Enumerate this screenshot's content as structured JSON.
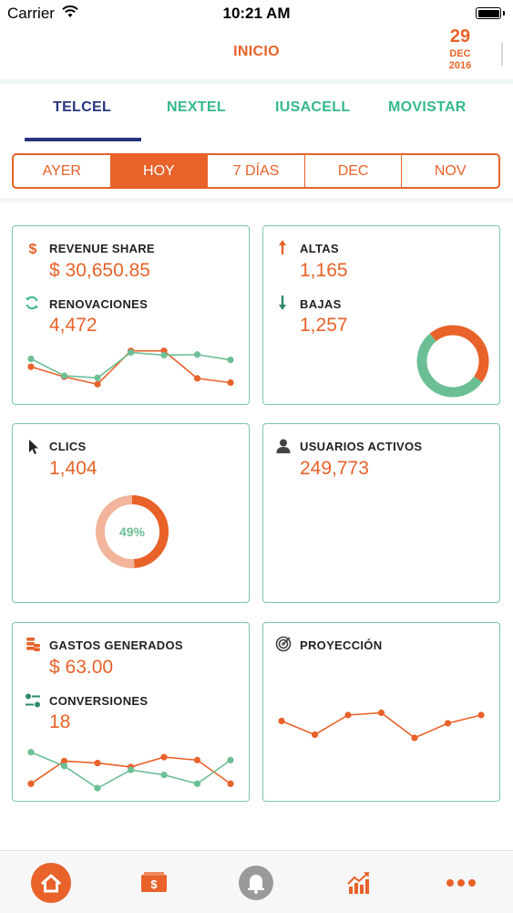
{
  "status_bar": {
    "carrier": "Carrier",
    "time": "10:21 AM"
  },
  "header": {
    "title": "INICIO",
    "date": {
      "day": "29",
      "month": "DEC",
      "year": "2016"
    }
  },
  "carrier_tabs": [
    {
      "label": "TELCEL",
      "selected": true
    },
    {
      "label": "NEXTEL",
      "selected": false
    },
    {
      "label": "IUSACELL",
      "selected": false
    },
    {
      "label": "MOVISTAR",
      "selected": false
    }
  ],
  "periods": [
    {
      "label": "AYER",
      "selected": false
    },
    {
      "label": "HOY",
      "selected": true
    },
    {
      "label": "7 DÍAS",
      "selected": false
    },
    {
      "label": "DEC",
      "selected": false
    },
    {
      "label": "NOV",
      "selected": false
    }
  ],
  "cards": {
    "revenue": {
      "label": "REVENUE SHARE",
      "value": "$ 30,650.85",
      "icon": "dollar-icon"
    },
    "renovaciones": {
      "label": "RENOVACIONES",
      "value": "4,472",
      "icon": "refresh-icon"
    },
    "altas": {
      "label": "ALTAS",
      "value": "1,165",
      "icon": "arrow-up-icon"
    },
    "bajas": {
      "label": "BAJAS",
      "value": "1,257",
      "icon": "arrow-down-icon"
    },
    "clics": {
      "label": "CLICS",
      "value": "1,404",
      "icon": "cursor-icon",
      "percent_label": "49%"
    },
    "usuarios": {
      "label": "USUARIOS ACTIVOS",
      "value": "249,773",
      "icon": "user-icon"
    },
    "gastos": {
      "label": "GASTOS GENERADOS",
      "value": "$ 63.00",
      "icon": "coins-icon"
    },
    "conversiones": {
      "label": "CONVERSIONES",
      "value": "18",
      "icon": "sliders-icon"
    },
    "proyeccion": {
      "label": "PROYECCIÓN",
      "icon": "target-icon"
    }
  },
  "chart_data": [
    {
      "type": "line",
      "series": [
        {
          "color": "#e8622a",
          "values": [
            5.5,
            3.6,
            2.2,
            8.5,
            8.5,
            3.3,
            2.5
          ]
        },
        {
          "color": "#6cbf95",
          "values": [
            7,
            3.8,
            3.4,
            8.2,
            7.7,
            7.8,
            6.8
          ]
        }
      ],
      "ylim": [
        0,
        10
      ]
    },
    {
      "type": "pie",
      "series": [
        {
          "color": "#e8622a",
          "value": 46
        },
        {
          "color": "#6cbf95",
          "value": 54
        }
      ]
    },
    {
      "type": "pie",
      "series": [
        {
          "color": "#e8622a",
          "value": 49
        },
        {
          "color": "#f2b59b",
          "value": 51
        }
      ],
      "annotations": [
        "49%"
      ]
    },
    {
      "type": "line",
      "series": [
        {
          "color": "#e8622a",
          "values": [
            1.8,
            6.4,
            6,
            5.2,
            7.2,
            6.6,
            1.8
          ]
        },
        {
          "color": "#6cbf95",
          "values": [
            8.2,
            5.4,
            0.9,
            4.6,
            3.6,
            1.8,
            6.6
          ]
        }
      ],
      "ylim": [
        0,
        10
      ]
    },
    {
      "type": "line",
      "series": [
        {
          "color": "#e8622a",
          "values": [
            5.3,
            2.3,
            6.6,
            7.1,
            1.6,
            4.8,
            6.6
          ]
        }
      ],
      "ylim": [
        0,
        10
      ]
    }
  ],
  "nav": [
    {
      "icon": "home-icon",
      "active": true
    },
    {
      "icon": "wallet-icon",
      "active": false
    },
    {
      "icon": "bell-icon",
      "active": false
    },
    {
      "icon": "chart-icon",
      "active": false
    },
    {
      "icon": "more-icon",
      "active": false
    }
  ],
  "colors": {
    "accent": "#e8622a",
    "green": "#6cbf95",
    "navy": "#27357e",
    "border": "#7cc7a3"
  }
}
